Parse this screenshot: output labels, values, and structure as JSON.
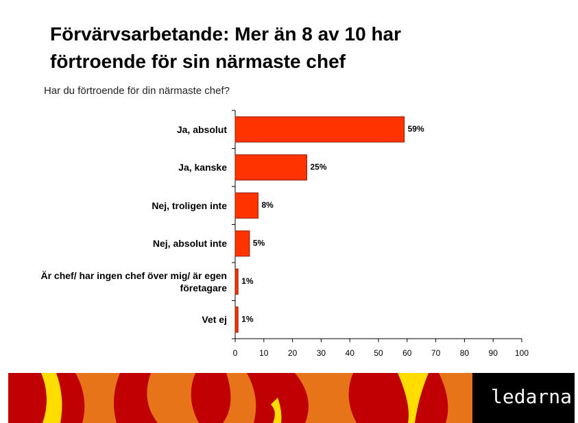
{
  "chart_data": {
    "type": "barh",
    "title": "Förvärvsarbetande: Mer än 8 av 10 har förtroende för sin närmaste chef",
    "subtitle": "Har du förtroende för din närmaste chef?",
    "categories": [
      "Ja, absolut",
      "Ja, kanske",
      "Nej, troligen inte",
      "Nej, absolut inte",
      "Är chef/ har ingen chef över mig/ är egen företagare",
      "Vet ej"
    ],
    "values": [
      59,
      25,
      8,
      5,
      1,
      1
    ],
    "value_labels": [
      "59%",
      "25%",
      "8%",
      "5%",
      "1%",
      "1%"
    ],
    "color": "#ff3300",
    "xlim": [
      0,
      100
    ],
    "xticks": [
      0,
      10,
      20,
      30,
      40,
      50,
      60,
      70,
      80,
      90,
      100
    ]
  },
  "logo": "ledarna"
}
